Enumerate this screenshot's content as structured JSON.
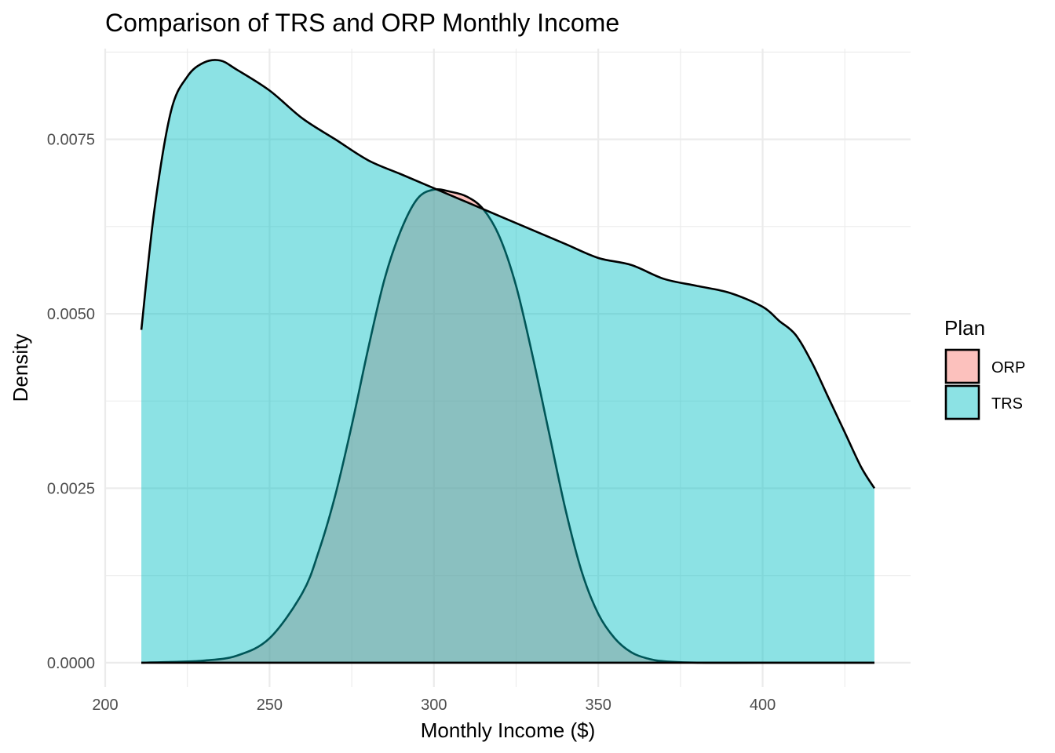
{
  "chart_data": {
    "type": "area",
    "title": "Comparison of TRS and ORP Monthly Income",
    "xlabel": "Monthly Income ($)",
    "ylabel": "Density",
    "xlim": [
      200,
      445
    ],
    "ylim": [
      -0.00035,
      0.0088
    ],
    "x_ticks": [
      200,
      250,
      300,
      350,
      400
    ],
    "x_tick_labels": [
      "200",
      "250",
      "300",
      "350",
      "400"
    ],
    "y_ticks": [
      0,
      0.0025,
      0.005,
      0.0075
    ],
    "y_tick_labels": [
      "0.0000",
      "0.0025",
      "0.0050",
      "0.0075"
    ],
    "grid": true,
    "legend": {
      "title": "Plan",
      "position": "right"
    },
    "series": [
      {
        "name": "ORP",
        "color": "#F8766D",
        "points": [
          [
            211,
            0.0
          ],
          [
            220,
            1e-05
          ],
          [
            230,
            3e-05
          ],
          [
            240,
            0.0001
          ],
          [
            250,
            0.00035
          ],
          [
            260,
            0.001
          ],
          [
            265,
            0.0016
          ],
          [
            270,
            0.0024
          ],
          [
            275,
            0.0034
          ],
          [
            280,
            0.0045
          ],
          [
            285,
            0.0055
          ],
          [
            290,
            0.0062
          ],
          [
            295,
            0.00665
          ],
          [
            300,
            0.00678
          ],
          [
            305,
            0.00675
          ],
          [
            310,
            0.00668
          ],
          [
            315,
            0.0065
          ],
          [
            320,
            0.0061
          ],
          [
            325,
            0.0054
          ],
          [
            330,
            0.0044
          ],
          [
            335,
            0.0033
          ],
          [
            340,
            0.0022
          ],
          [
            345,
            0.0013
          ],
          [
            350,
            0.0007
          ],
          [
            355,
            0.00035
          ],
          [
            360,
            0.00015
          ],
          [
            365,
            6e-05
          ],
          [
            370,
            2e-05
          ],
          [
            380,
            0.0
          ],
          [
            400,
            0.0
          ],
          [
            434,
            0.0
          ]
        ]
      },
      {
        "name": "TRS",
        "color": "#00BFC4",
        "points": [
          [
            211,
            0.00477
          ],
          [
            215,
            0.0065
          ],
          [
            220,
            0.0079
          ],
          [
            225,
            0.0084
          ],
          [
            230,
            0.0086
          ],
          [
            235,
            0.00863
          ],
          [
            240,
            0.0085
          ],
          [
            250,
            0.0082
          ],
          [
            260,
            0.0078
          ],
          [
            270,
            0.0075
          ],
          [
            280,
            0.0072
          ],
          [
            290,
            0.007
          ],
          [
            300,
            0.0068
          ],
          [
            310,
            0.0066
          ],
          [
            320,
            0.0064
          ],
          [
            330,
            0.0062
          ],
          [
            340,
            0.006
          ],
          [
            350,
            0.0058
          ],
          [
            360,
            0.0057
          ],
          [
            370,
            0.0055
          ],
          [
            380,
            0.0054
          ],
          [
            390,
            0.0053
          ],
          [
            400,
            0.0051
          ],
          [
            405,
            0.0049
          ],
          [
            410,
            0.0047
          ],
          [
            415,
            0.0043
          ],
          [
            420,
            0.0038
          ],
          [
            425,
            0.0033
          ],
          [
            430,
            0.0028
          ],
          [
            434,
            0.0025
          ]
        ]
      }
    ]
  }
}
